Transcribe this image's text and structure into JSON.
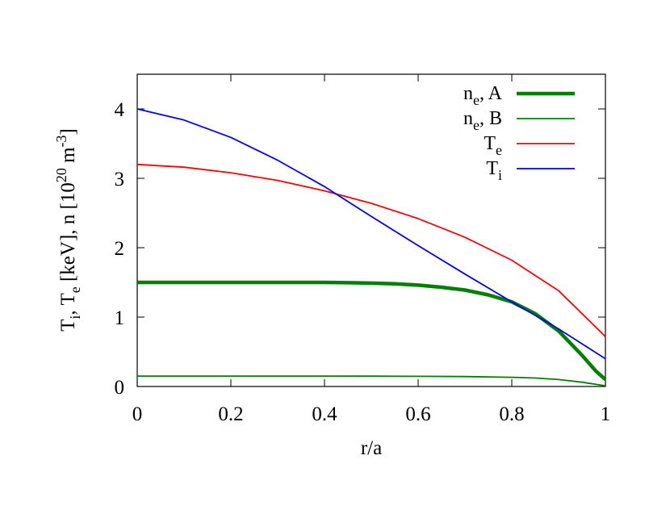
{
  "chart_data": {
    "type": "line",
    "xlabel": "r/a",
    "ylabel": {
      "parts": [
        {
          "t": "T",
          "s": ""
        },
        {
          "t": "i",
          "s": "sub"
        },
        {
          "t": ", T",
          "s": ""
        },
        {
          "t": "e",
          "s": "sub"
        },
        {
          "t": " [keV], n [10",
          "s": ""
        },
        {
          "t": "20",
          "s": "sup"
        },
        {
          "t": " m",
          "s": ""
        },
        {
          "t": "-3",
          "s": "sup"
        },
        {
          "t": "]",
          "s": ""
        }
      ]
    },
    "xlim": [
      0,
      1
    ],
    "ylim": [
      0,
      4.5
    ],
    "xticks": [
      0,
      0.2,
      0.4,
      0.6,
      0.8,
      1
    ],
    "xtick_labels": [
      "0",
      "0.2",
      "0.4",
      "0.6",
      "0.8",
      "1"
    ],
    "yticks": [
      0,
      1,
      2,
      3,
      4
    ],
    "ytick_labels": [
      "0",
      "1",
      "2",
      "3",
      "4"
    ],
    "grid": false,
    "legend_position": "top-right",
    "series": [
      {
        "name": "n_e, A",
        "label_main": "n",
        "label_sub": "e",
        "label_rest": ", A",
        "color": "#008000",
        "line_weight": "thick",
        "x": [
          0,
          0.1,
          0.2,
          0.3,
          0.4,
          0.45,
          0.5,
          0.55,
          0.6,
          0.65,
          0.7,
          0.75,
          0.8,
          0.85,
          0.9,
          0.95,
          0.98,
          1.0
        ],
        "y": [
          1.5,
          1.5,
          1.5,
          1.5,
          1.5,
          1.495,
          1.49,
          1.48,
          1.46,
          1.43,
          1.39,
          1.32,
          1.22,
          1.05,
          0.8,
          0.45,
          0.22,
          0.1
        ]
      },
      {
        "name": "n_e, B",
        "label_main": "n",
        "label_sub": "e",
        "label_rest": ", B",
        "color": "#008000",
        "line_weight": "thin",
        "x": [
          0,
          0.2,
          0.4,
          0.5,
          0.6,
          0.7,
          0.8,
          0.85,
          0.9,
          0.95,
          1.0
        ],
        "y": [
          0.15,
          0.15,
          0.15,
          0.149,
          0.147,
          0.143,
          0.133,
          0.122,
          0.1,
          0.062,
          0.01
        ]
      },
      {
        "name": "T_e",
        "label_main": "T",
        "label_sub": "e",
        "label_rest": "",
        "color": "#ff0000",
        "line_weight": "thin",
        "x": [
          0,
          0.1,
          0.2,
          0.3,
          0.4,
          0.5,
          0.6,
          0.7,
          0.8,
          0.9,
          1.0
        ],
        "y": [
          3.2,
          3.16,
          3.08,
          2.97,
          2.82,
          2.64,
          2.42,
          2.15,
          1.82,
          1.38,
          0.72
        ]
      },
      {
        "name": "T_i",
        "label_main": "T",
        "label_sub": "i",
        "label_rest": "",
        "color": "#0000ff",
        "line_weight": "thin",
        "x": [
          0,
          0.1,
          0.2,
          0.3,
          0.4,
          0.5,
          0.6,
          0.7,
          0.8,
          0.9,
          1.0
        ],
        "y": [
          4.0,
          3.84,
          3.59,
          3.26,
          2.88,
          2.45,
          2.03,
          1.62,
          1.22,
          0.83,
          0.4
        ]
      }
    ]
  }
}
